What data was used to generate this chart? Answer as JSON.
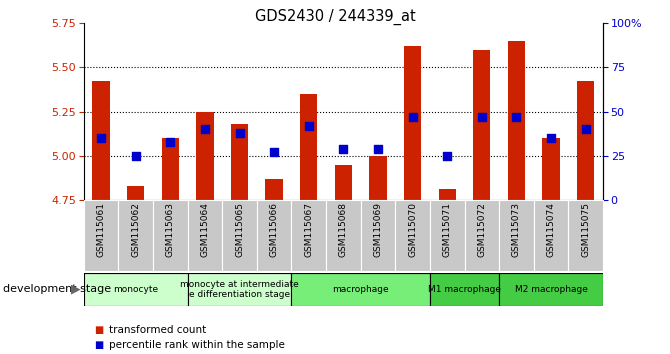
{
  "title": "GDS2430 / 244339_at",
  "samples": [
    "GSM115061",
    "GSM115062",
    "GSM115063",
    "GSM115064",
    "GSM115065",
    "GSM115066",
    "GSM115067",
    "GSM115068",
    "GSM115069",
    "GSM115070",
    "GSM115071",
    "GSM115072",
    "GSM115073",
    "GSM115074",
    "GSM115075"
  ],
  "transformed_count": [
    5.42,
    4.83,
    5.1,
    5.25,
    5.18,
    4.87,
    5.35,
    4.95,
    5.0,
    5.62,
    4.81,
    5.6,
    5.65,
    5.1,
    5.42
  ],
  "percentile_rank": [
    35,
    25,
    33,
    40,
    38,
    27,
    42,
    29,
    29,
    47,
    25,
    47,
    47,
    35,
    40
  ],
  "ylim_left": [
    4.75,
    5.75
  ],
  "yticks_left": [
    4.75,
    5.0,
    5.25,
    5.5,
    5.75
  ],
  "yticks_right": [
    0,
    25,
    50,
    75,
    100
  ],
  "ytick_right_labels": [
    "0",
    "25",
    "50",
    "75",
    "100%"
  ],
  "grid_lines": [
    5.0,
    5.25,
    5.5
  ],
  "bar_color": "#cc2200",
  "dot_color": "#0000cc",
  "bar_width": 0.5,
  "dot_size": 40,
  "stage_groups": [
    {
      "label": "monocyte",
      "start": 0,
      "end": 2,
      "color": "#ccffcc"
    },
    {
      "label": "monocyte at intermediate\ne differentiation stage",
      "start": 3,
      "end": 5,
      "color": "#ccffcc"
    },
    {
      "label": "macrophage",
      "start": 6,
      "end": 9,
      "color": "#77ee77"
    },
    {
      "label": "M1 macrophage",
      "start": 10,
      "end": 11,
      "color": "#44cc44"
    },
    {
      "label": "M2 macrophage",
      "start": 12,
      "end": 14,
      "color": "#44cc44"
    }
  ],
  "tick_bg_color": "#c8c8c8",
  "tick_border_color": "#aaaaaa"
}
